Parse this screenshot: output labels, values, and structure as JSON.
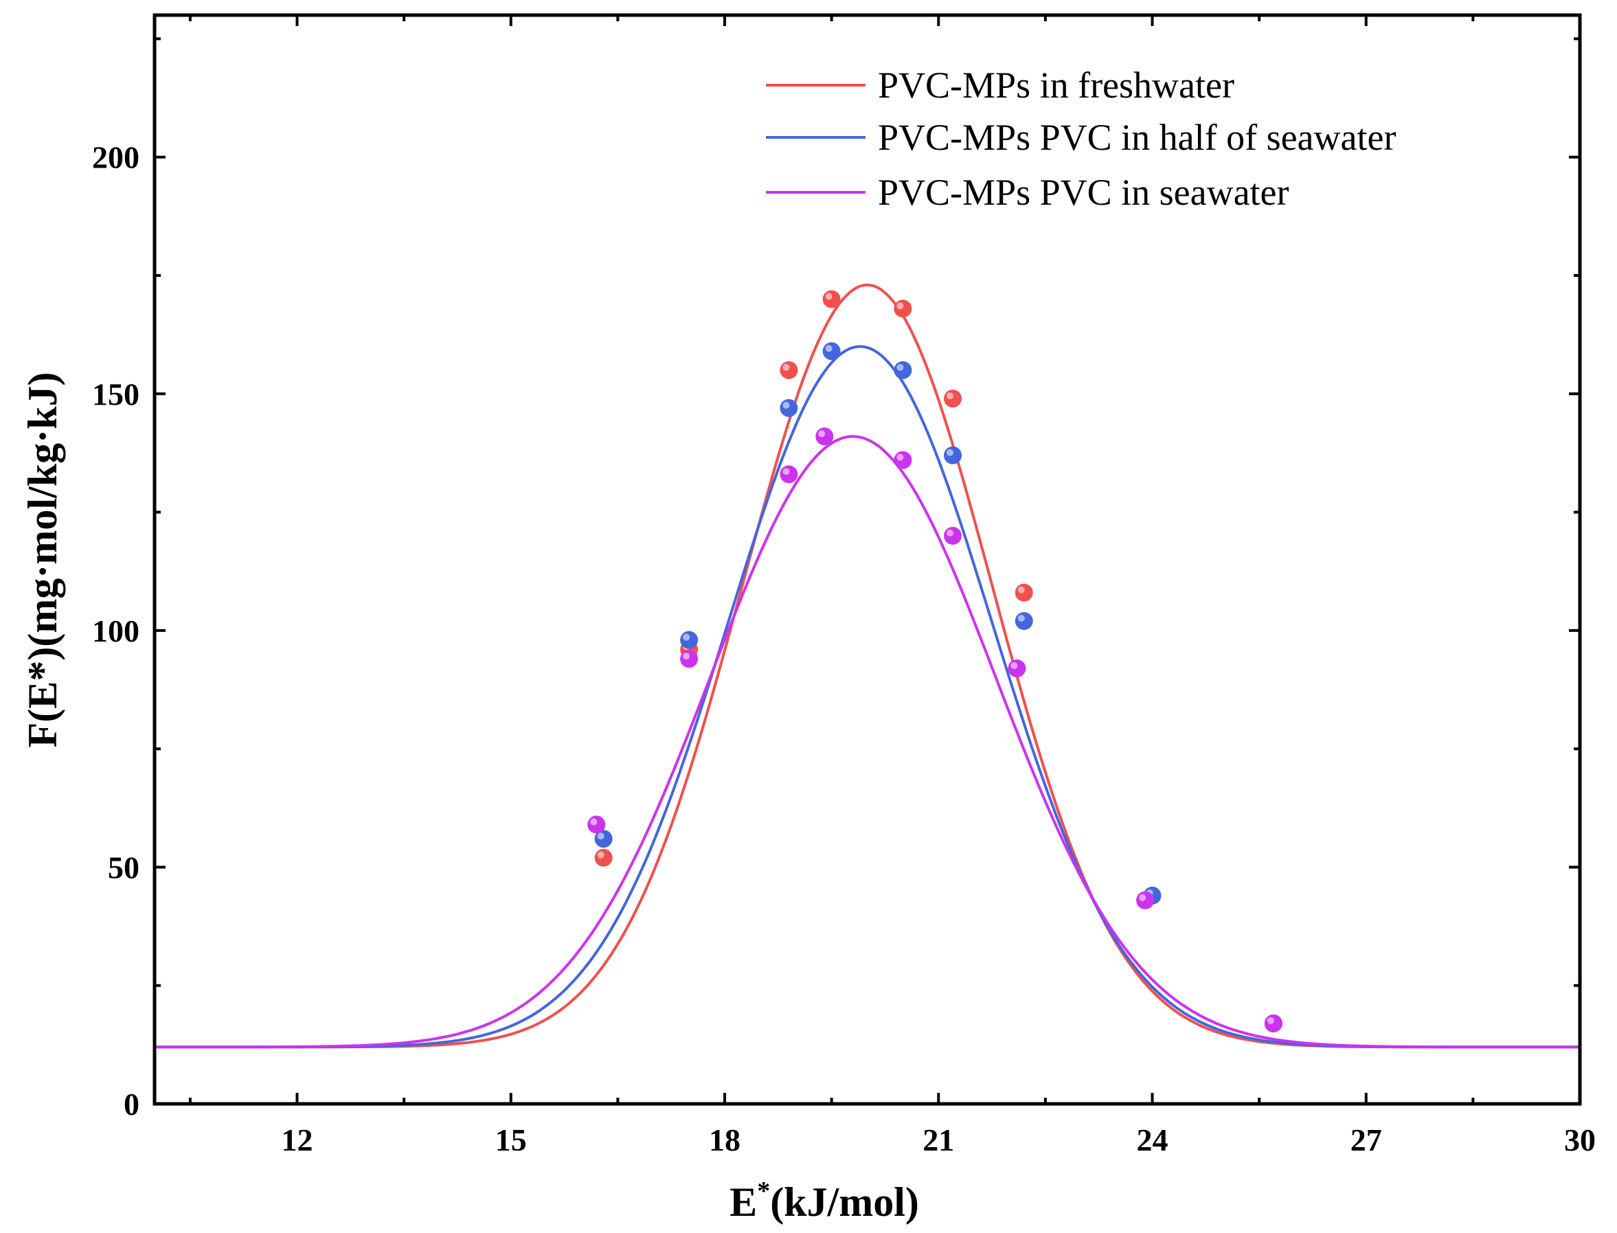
{
  "chart_data": {
    "type": "line",
    "title": "",
    "xlabel": {
      "main": "E",
      "sup": "*",
      "rest": "(kJ/mol)"
    },
    "ylabel": "F(E*)(mg·mol/kg·kJ)",
    "xlim": [
      10,
      30
    ],
    "ylim": [
      0,
      230
    ],
    "xticks": [
      12,
      15,
      18,
      21,
      24,
      27,
      30
    ],
    "yticks": [
      0,
      50,
      100,
      150,
      200
    ],
    "grid": false,
    "legend_position": "top-right",
    "series": [
      {
        "name": "PVC-MPs in freshwater",
        "color": "#f0504e",
        "points": [
          {
            "x": 16.3,
            "y": 52
          },
          {
            "x": 17.5,
            "y": 96
          },
          {
            "x": 18.9,
            "y": 155
          },
          {
            "x": 19.5,
            "y": 170
          },
          {
            "x": 20.5,
            "y": 168
          },
          {
            "x": 21.2,
            "y": 149
          },
          {
            "x": 22.2,
            "y": 108
          },
          {
            "x": 23.9,
            "y": 43
          },
          {
            "x": 25.7,
            "y": 17
          }
        ],
        "fit": {
          "baseline": 12,
          "amplitude": 161,
          "center": 20.0,
          "sigma": 1.75
        }
      },
      {
        "name": "PVC-MPs PVC in half of seawater",
        "color": "#4466dd",
        "points": [
          {
            "x": 16.3,
            "y": 56
          },
          {
            "x": 17.5,
            "y": 98
          },
          {
            "x": 18.9,
            "y": 147
          },
          {
            "x": 19.5,
            "y": 159
          },
          {
            "x": 20.5,
            "y": 155
          },
          {
            "x": 21.2,
            "y": 137
          },
          {
            "x": 22.2,
            "y": 102
          },
          {
            "x": 24.0,
            "y": 44
          },
          {
            "x": 25.7,
            "y": 17
          }
        ],
        "fit": {
          "baseline": 12,
          "amplitude": 148,
          "center": 19.9,
          "sigma": 1.85
        }
      },
      {
        "name": "PVC-MPs PVC in seawater",
        "color": "#cc33ee",
        "points": [
          {
            "x": 16.2,
            "y": 59
          },
          {
            "x": 17.5,
            "y": 94
          },
          {
            "x": 18.9,
            "y": 133
          },
          {
            "x": 19.4,
            "y": 141
          },
          {
            "x": 20.5,
            "y": 136
          },
          {
            "x": 21.2,
            "y": 120
          },
          {
            "x": 22.1,
            "y": 92
          },
          {
            "x": 23.9,
            "y": 43
          },
          {
            "x": 25.7,
            "y": 17
          }
        ],
        "fit": {
          "baseline": 12,
          "amplitude": 129,
          "center": 19.8,
          "sigma": 2.0
        }
      }
    ]
  }
}
